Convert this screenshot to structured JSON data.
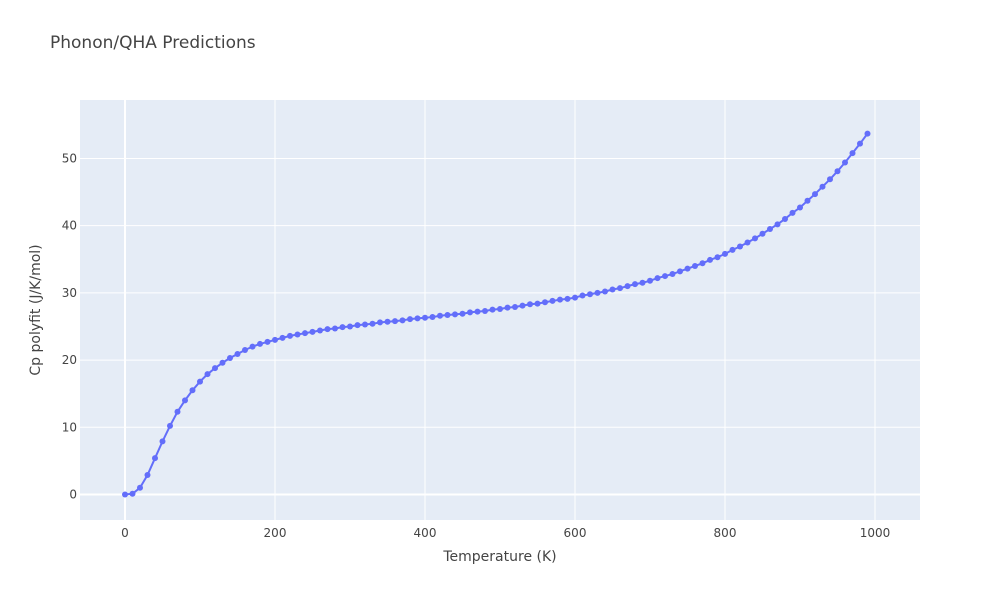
{
  "chart_data": {
    "type": "line",
    "title": "Phonon/QHA Predictions",
    "xlabel": "Temperature (K)",
    "ylabel": "Cp polyfit (J/K/mol)",
    "xlim": [
      -60,
      1060
    ],
    "ylim": [
      -3.8,
      58.7
    ],
    "x_ticks": [
      0,
      200,
      400,
      600,
      800,
      1000
    ],
    "y_ticks": [
      0,
      10,
      20,
      30,
      40,
      50
    ],
    "grid": true,
    "series": [
      {
        "markers": true,
        "color": "#636efa",
        "x": [
          0,
          10,
          20,
          30,
          40,
          50,
          60,
          70,
          80,
          90,
          100,
          110,
          120,
          130,
          140,
          150,
          160,
          170,
          180,
          190,
          200,
          210,
          220,
          230,
          240,
          250,
          260,
          270,
          280,
          290,
          300,
          310,
          320,
          330,
          340,
          350,
          360,
          370,
          380,
          390,
          400,
          410,
          420,
          430,
          440,
          450,
          460,
          470,
          480,
          490,
          500,
          510,
          520,
          530,
          540,
          550,
          560,
          570,
          580,
          590,
          600,
          610,
          620,
          630,
          640,
          650,
          660,
          670,
          680,
          690,
          700,
          710,
          720,
          730,
          740,
          750,
          760,
          770,
          780,
          790,
          800,
          810,
          820,
          830,
          840,
          850,
          860,
          870,
          880,
          890,
          900,
          910,
          920,
          930,
          940,
          950,
          960,
          970,
          980,
          990
        ],
        "y": [
          0.0,
          0.1,
          1.0,
          2.9,
          5.4,
          7.9,
          10.2,
          12.3,
          14.0,
          15.5,
          16.8,
          17.9,
          18.8,
          19.6,
          20.3,
          20.9,
          21.5,
          22.0,
          22.4,
          22.7,
          23.0,
          23.3,
          23.6,
          23.8,
          24.0,
          24.2,
          24.4,
          24.6,
          24.7,
          24.9,
          25.0,
          25.2,
          25.3,
          25.4,
          25.6,
          25.7,
          25.8,
          25.9,
          26.1,
          26.2,
          26.3,
          26.4,
          26.6,
          26.7,
          26.8,
          26.9,
          27.1,
          27.2,
          27.3,
          27.5,
          27.6,
          27.8,
          27.9,
          28.1,
          28.3,
          28.4,
          28.6,
          28.8,
          29.0,
          29.1,
          29.3,
          29.6,
          29.8,
          30.0,
          30.2,
          30.5,
          30.7,
          31.0,
          31.3,
          31.5,
          31.8,
          32.2,
          32.5,
          32.8,
          33.2,
          33.6,
          34.0,
          34.4,
          34.9,
          35.3,
          35.8,
          36.4,
          36.9,
          37.5,
          38.1,
          38.8,
          39.5,
          40.2,
          41.0,
          41.9,
          42.7,
          43.7,
          44.7,
          45.8,
          46.9,
          48.1,
          49.4,
          50.8,
          52.2,
          53.7
        ]
      }
    ]
  }
}
